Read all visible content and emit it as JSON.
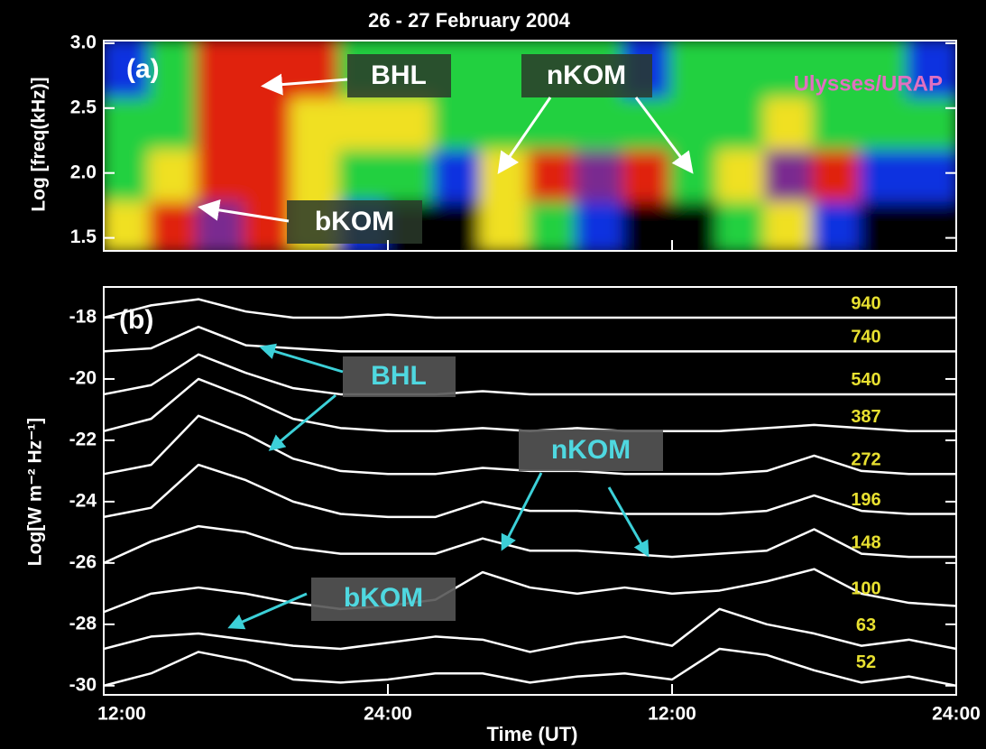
{
  "chart_data": [
    {
      "type": "heatmap",
      "title": "26 - 27 February 2004",
      "ylabel": "Log [freq(kHz)]",
      "annotations": [
        "(a)",
        "BHL",
        "nKOM",
        "bKOM",
        "Ulysses/URAP"
      ],
      "xlim": [
        0,
        36
      ],
      "xticks": [
        {
          "value": 0,
          "label": "12:00"
        },
        {
          "value": 12,
          "label": "24:00"
        },
        {
          "value": 24,
          "label": "12:00"
        },
        {
          "value": 36,
          "label": "24:00"
        }
      ],
      "ylim": [
        1.4,
        3.02
      ],
      "yticks": [
        {
          "value": 1.5,
          "label": "1.5"
        },
        {
          "value": 2,
          "label": "2.0"
        },
        {
          "value": 2.5,
          "label": "2.5"
        },
        {
          "value": 3,
          "label": "3.0"
        }
      ],
      "xbins": [
        0,
        2,
        4,
        6,
        8,
        10,
        12,
        14,
        16,
        18,
        20,
        22,
        24,
        26,
        28,
        30,
        32,
        34,
        36
      ],
      "ybins": [
        1.4,
        1.8,
        2.2,
        2.6,
        3.02
      ],
      "colors": [
        "#000000",
        "#1030e0",
        "#20d040",
        "#f0e020",
        "#e02010",
        "#7a2a90"
      ],
      "z": [
        [
          3,
          4,
          5,
          4,
          3,
          1,
          0,
          0,
          3,
          2,
          1,
          0,
          0,
          2,
          3,
          1,
          0,
          0
        ],
        [
          2,
          3,
          4,
          4,
          3,
          2,
          2,
          1,
          3,
          4,
          5,
          4,
          2,
          3,
          5,
          4,
          1,
          1
        ],
        [
          2,
          2,
          4,
          4,
          3,
          3,
          3,
          2,
          2,
          2,
          2,
          2,
          2,
          2,
          3,
          2,
          2,
          2
        ],
        [
          1,
          2,
          4,
          4,
          4,
          2,
          2,
          2,
          2,
          2,
          2,
          1,
          2,
          2,
          2,
          2,
          2,
          1
        ]
      ]
    },
    {
      "type": "line",
      "xlabel": "Time (UT)",
      "ylabel": "Log[W m⁻² Hz⁻¹]",
      "annotations": [
        "(b)",
        "BHL",
        "nKOM",
        "bKOM"
      ],
      "xlim": [
        0,
        36
      ],
      "xticks": [
        {
          "value": 0,
          "label": "12:00"
        },
        {
          "value": 12,
          "label": "24:00"
        },
        {
          "value": 24,
          "label": "12:00"
        },
        {
          "value": 36,
          "label": "24:00"
        }
      ],
      "ylim": [
        -30.3,
        -17
      ],
      "yticks": [
        -18,
        -20,
        -22,
        -24,
        -26,
        -28,
        -30
      ],
      "label_color": "#e8e030",
      "x": [
        0,
        2,
        4,
        6,
        8,
        10,
        12,
        14,
        16,
        18,
        20,
        22,
        24,
        26,
        28,
        30,
        32,
        34,
        36
      ],
      "series": [
        {
          "name": "940",
          "color": "#ffffff",
          "values": [
            -18,
            -17.6,
            -17.4,
            -17.8,
            -18,
            -18,
            -17.9,
            -18,
            -18,
            -18,
            -18,
            -18,
            -18,
            -18,
            -18,
            -18,
            -18,
            -18,
            -18
          ]
        },
        {
          "name": "740",
          "color": "#ffffff",
          "values": [
            -19.1,
            -19,
            -18.3,
            -18.9,
            -19,
            -19.1,
            -19.1,
            -19.1,
            -19.1,
            -19.1,
            -19.1,
            -19.1,
            -19.1,
            -19.1,
            -19.1,
            -19.1,
            -19.1,
            -19.1,
            -19.1
          ]
        },
        {
          "name": "540",
          "color": "#ffffff",
          "values": [
            -20.5,
            -20.2,
            -19.2,
            -19.8,
            -20.3,
            -20.5,
            -20.5,
            -20.5,
            -20.4,
            -20.5,
            -20.5,
            -20.5,
            -20.5,
            -20.5,
            -20.5,
            -20.5,
            -20.5,
            -20.5,
            -20.5
          ]
        },
        {
          "name": "387",
          "color": "#ffffff",
          "values": [
            -21.7,
            -21.3,
            -20,
            -20.6,
            -21.3,
            -21.6,
            -21.7,
            -21.7,
            -21.6,
            -21.7,
            -21.6,
            -21.7,
            -21.7,
            -21.7,
            -21.6,
            -21.5,
            -21.6,
            -21.7,
            -21.7
          ]
        },
        {
          "name": "272",
          "color": "#ffffff",
          "values": [
            -23.1,
            -22.8,
            -21.2,
            -21.8,
            -22.6,
            -23,
            -23.1,
            -23.1,
            -22.9,
            -23,
            -23,
            -23.1,
            -23.1,
            -23.1,
            -23,
            -22.5,
            -23,
            -23.1,
            -23.1
          ]
        },
        {
          "name": "196",
          "color": "#ffffff",
          "values": [
            -24.5,
            -24.2,
            -22.8,
            -23.3,
            -24,
            -24.4,
            -24.5,
            -24.5,
            -24,
            -24.3,
            -24.3,
            -24.4,
            -24.4,
            -24.4,
            -24.3,
            -23.8,
            -24.3,
            -24.4,
            -24.4
          ]
        },
        {
          "name": "148",
          "color": "#ffffff",
          "values": [
            -26,
            -25.3,
            -24.8,
            -25,
            -25.5,
            -25.7,
            -25.7,
            -25.7,
            -25.2,
            -25.6,
            -25.6,
            -25.7,
            -25.8,
            -25.7,
            -25.6,
            -24.9,
            -25.7,
            -25.8,
            -25.8
          ]
        },
        {
          "name": "100",
          "color": "#ffffff",
          "values": [
            -27.6,
            -27,
            -26.8,
            -27,
            -27.3,
            -27.5,
            -27.4,
            -27.2,
            -26.3,
            -26.8,
            -27,
            -26.8,
            -27,
            -26.9,
            -26.6,
            -26.2,
            -27,
            -27.3,
            -27.4
          ]
        },
        {
          "name": "63",
          "color": "#ffffff",
          "values": [
            -28.8,
            -28.4,
            -28.3,
            -28.5,
            -28.7,
            -28.8,
            -28.6,
            -28.4,
            -28.5,
            -28.9,
            -28.6,
            -28.4,
            -28.7,
            -27.5,
            -28,
            -28.3,
            -28.7,
            -28.5,
            -28.8
          ]
        },
        {
          "name": "52",
          "color": "#ffffff",
          "values": [
            -30,
            -29.6,
            -28.9,
            -29.2,
            -29.8,
            -29.9,
            -29.8,
            -29.6,
            -29.6,
            -29.9,
            -29.7,
            -29.6,
            -29.8,
            -28.8,
            -29,
            -29.5,
            -29.9,
            -29.7,
            -30
          ]
        }
      ]
    }
  ]
}
